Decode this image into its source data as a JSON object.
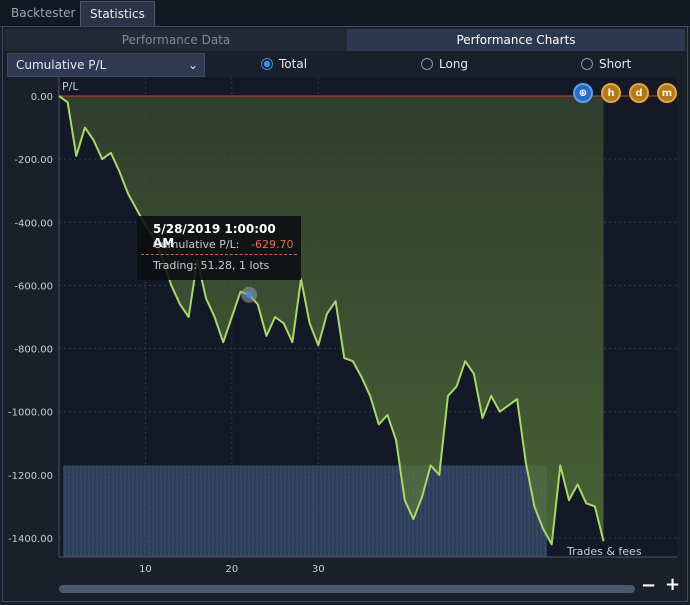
{
  "tabs": {
    "backtester": "Backtester",
    "statistics": "Statistics"
  },
  "subtabs": {
    "performance_data": "Performance Data",
    "performance_charts": "Performance Charts"
  },
  "dropdown": {
    "value": "Cumulative P/L",
    "chevron": "⌄"
  },
  "radios": {
    "total": "Total",
    "long": "Long",
    "short": "Short",
    "selected": "Total"
  },
  "chart_icons": [
    "zoom-reset-icon",
    "h-icon",
    "d-icon",
    "m-icon"
  ],
  "chart_icon_glyphs": {
    "h": "h",
    "d": "d",
    "m": "m"
  },
  "colors": {
    "line": "#a8d86a",
    "fill": "#4e6a30",
    "zero_line": "#d83a2a",
    "volume": "#2e3e58",
    "accent": "#3a8ee6",
    "negative": "#ee6a4a"
  },
  "tooltip": {
    "date": "5/28/2019 1:00:00 AM",
    "pl_label": "Cumulative P/L:",
    "pl_value": "-629.70",
    "trading": "Trading: 51.28, 1 lots"
  },
  "footer_label": "Trades & fees",
  "zoom": {
    "minus": "−",
    "plus": "+"
  },
  "chart_data": {
    "type": "area",
    "ylabel": "P/L",
    "yticks": [
      "0.00",
      "-200.00",
      "-400.00",
      "-600.00",
      "-800.00",
      "-1000.00",
      "-1200.00",
      "-1400.00"
    ],
    "ytick_values": [
      0,
      -200,
      -400,
      -600,
      -800,
      -1000,
      -1200,
      -1400
    ],
    "xticks": [
      "10",
      "20",
      "30"
    ],
    "xtick_values": [
      10,
      20,
      30
    ],
    "ylim": [
      -1460,
      60
    ],
    "xlim": [
      0,
      71.5
    ],
    "grid": true,
    "series": [
      {
        "values": [
          0,
          -20,
          -190,
          -100,
          -140,
          -200,
          -180,
          -240,
          -310,
          -360,
          -410,
          -450,
          -520,
          -600,
          -660,
          -700,
          -520,
          -640,
          -700,
          -780,
          -700,
          -620,
          -630,
          -660,
          -760,
          -700,
          -720,
          -780,
          -580,
          -720,
          -790,
          -690,
          -650,
          -830,
          -840,
          -890,
          -950,
          -1040,
          -1010,
          -1090,
          -1280,
          -1340,
          -1270,
          -1170,
          -1200,
          -950,
          -920,
          -840,
          -880,
          -1020,
          -950,
          -1000,
          -980,
          -960,
          -1160,
          -1300,
          -1370,
          -1420,
          -1170,
          -1280,
          -1230,
          -1290,
          -1300,
          -1410
        ]
      }
    ]
  }
}
